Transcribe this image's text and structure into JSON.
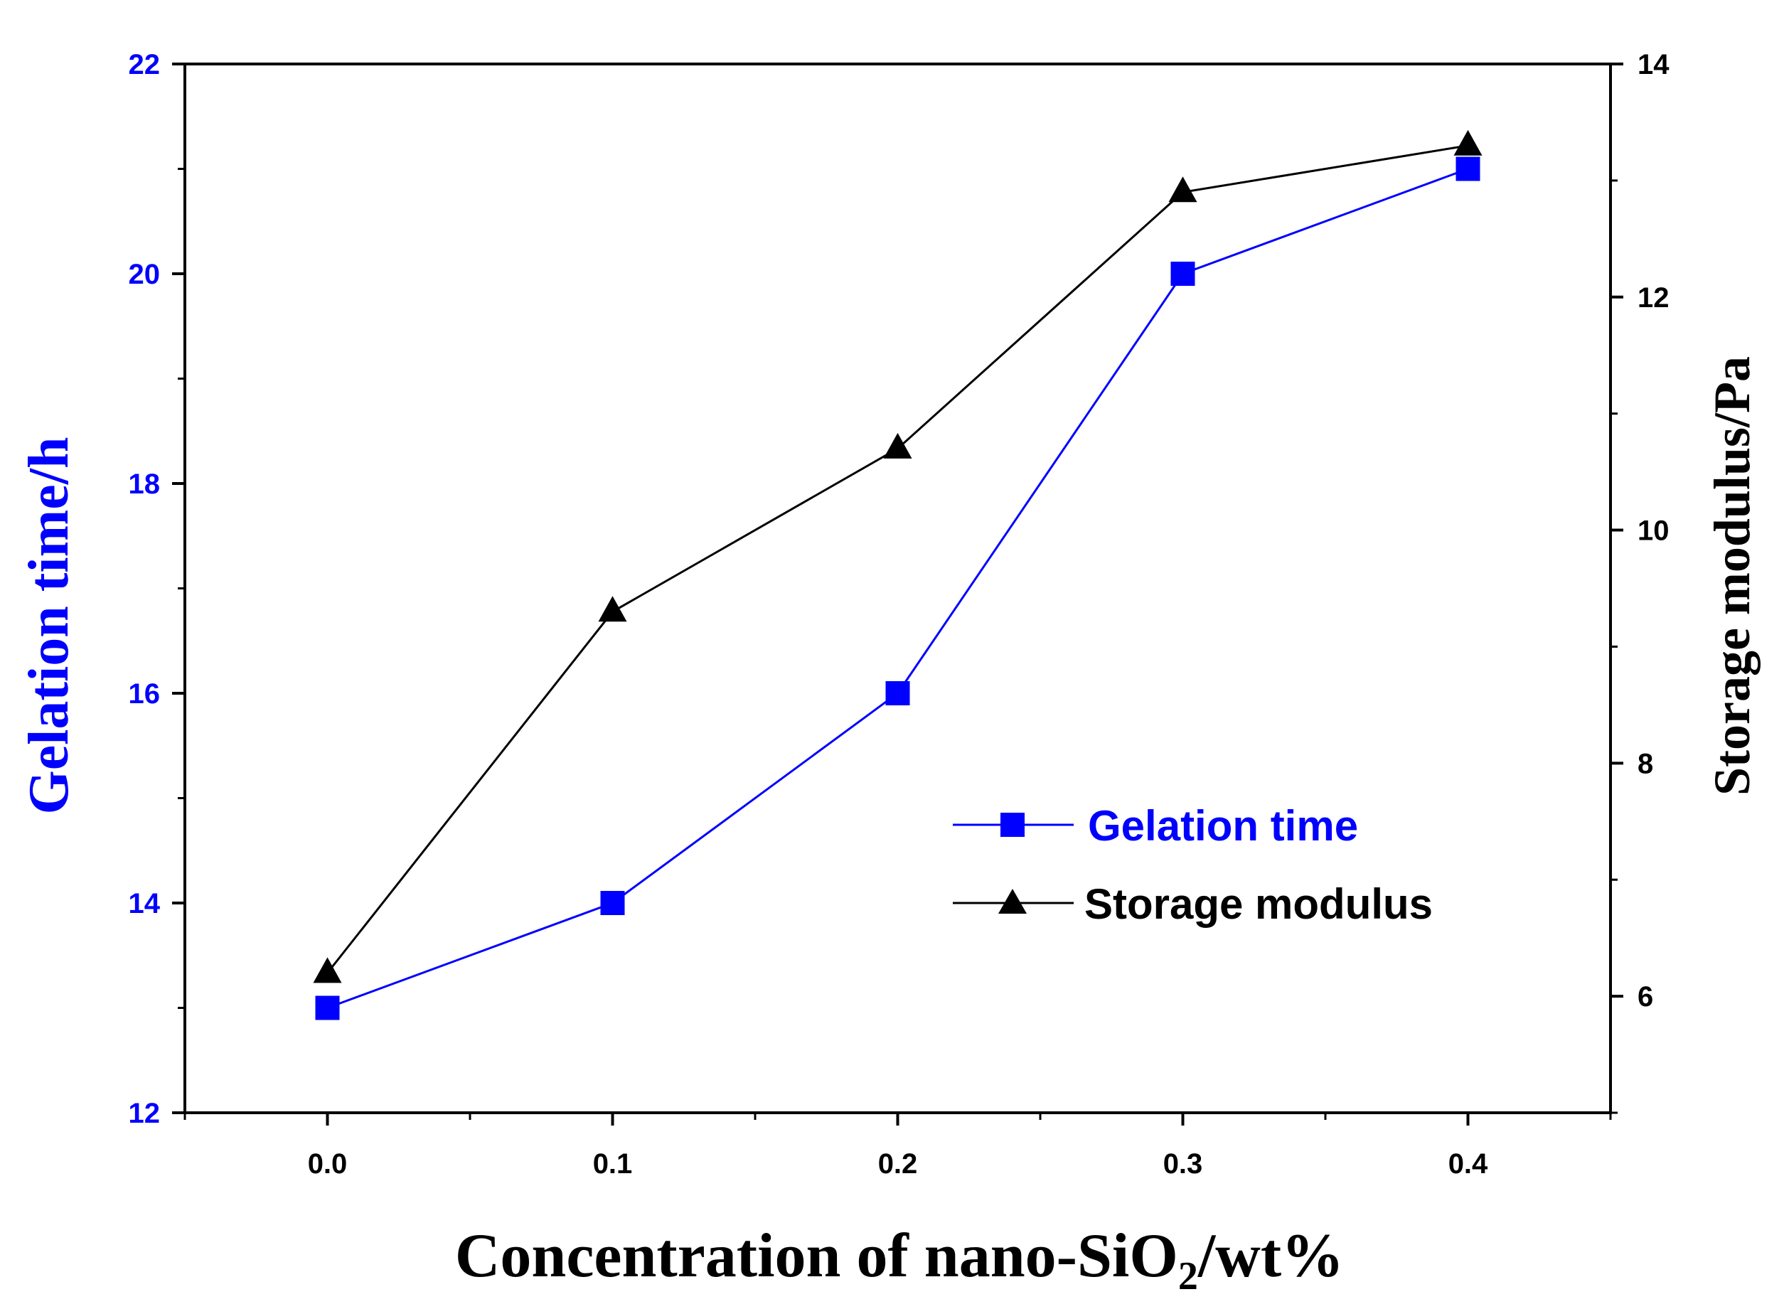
{
  "chart_data": {
    "type": "line",
    "title": "",
    "xlabel": "Concentration of nano-SiO",
    "xlabel_sub": "2",
    "xlabel_suffix": "/wt%",
    "ylabel_left": "Gelation time/h",
    "ylabel_right": "Storage modulus/Pa",
    "x": [
      0.0,
      0.1,
      0.2,
      0.3,
      0.4
    ],
    "xlim": [
      -0.05,
      0.45
    ],
    "x_ticks": [
      "0.0",
      "0.1",
      "0.2",
      "0.3",
      "0.4"
    ],
    "ylim_left": [
      12,
      22
    ],
    "y_ticks_left": [
      "12",
      "14",
      "16",
      "18",
      "20",
      "22"
    ],
    "ylim_right": [
      5,
      14
    ],
    "y_ticks_right": [
      "6",
      "8",
      "10",
      "12",
      "14"
    ],
    "series": [
      {
        "name": "Gelation time",
        "axis": "left",
        "marker": "square",
        "color": "#0000ff",
        "values": [
          13.0,
          14.0,
          16.0,
          20.0,
          21.0
        ]
      },
      {
        "name": "Storage modulus",
        "axis": "right",
        "marker": "triangle",
        "color": "#000000",
        "values": [
          6.2,
          9.3,
          10.7,
          12.9,
          13.3
        ]
      }
    ],
    "legend_position": "lower-right",
    "colors": {
      "left_axis": "#0000ff",
      "right_axis": "#000000"
    }
  }
}
